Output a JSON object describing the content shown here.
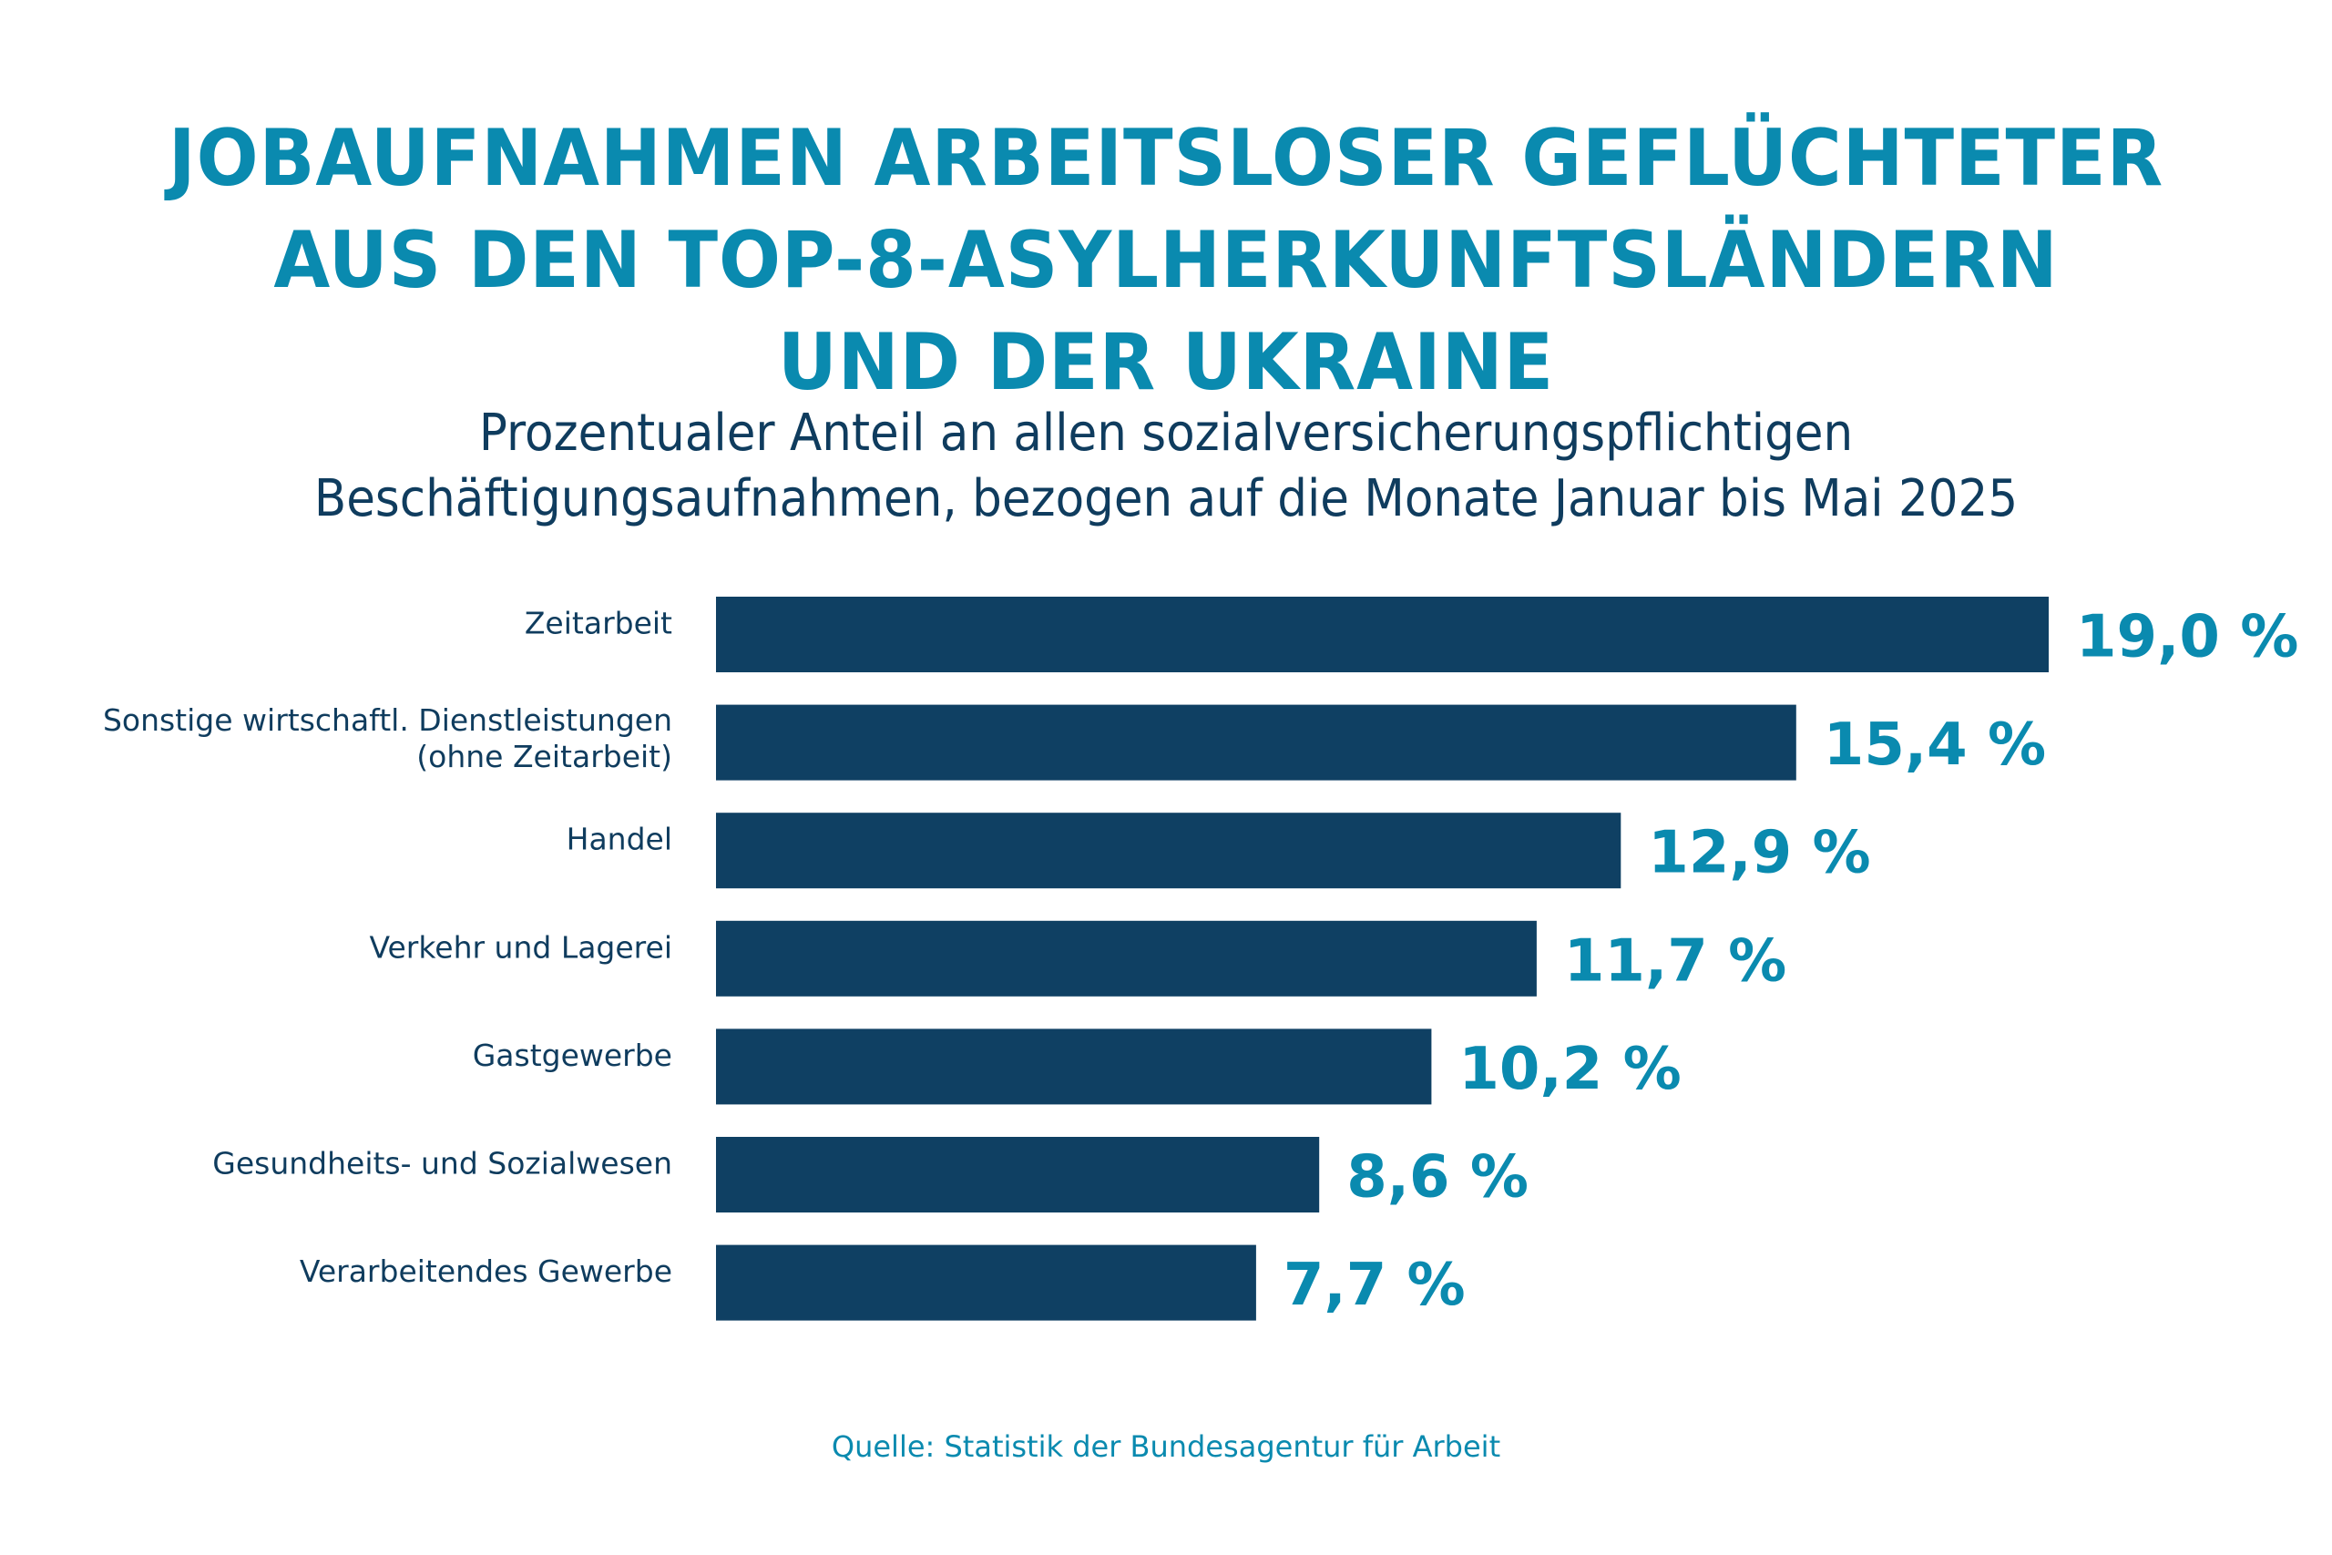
{
  "header": {
    "title_lines": [
      "JOBAUFNAHMEN ARBEITSLOSER GEFLÜCHTETER",
      "AUS DEN TOP-8-ASYLHERKUNFTSLÄNDERN",
      "UND DER UKRAINE"
    ],
    "subtitle_lines": [
      "Prozentualer Anteil an allen sozialversicherungspflichtigen",
      "Beschäftigungsaufnahmen, bezogen auf die Monate Januar bis Mai 2025"
    ]
  },
  "footer": {
    "source": "Quelle: Statistik der Bundesagentur für Arbeit"
  },
  "colors": {
    "accent": "#0a8aaf",
    "bar": "#0f4063",
    "label_text": "#0f3c5e",
    "background": "#ffffff"
  },
  "chart_data": {
    "type": "bar",
    "orientation": "horizontal",
    "title": "JOBAUFNAHMEN ARBEITSLOSER GEFLÜCHTETER AUS DEN TOP-8-ASYLHERKUNFTSLÄNDERN UND DER UKRAINE",
    "subtitle": "Prozentualer Anteil an allen sozialversicherungspflichtigen Beschäftigungsaufnahmen, bezogen auf die Monate Januar bis Mai 2025",
    "xlabel": "",
    "ylabel": "",
    "unit": "%",
    "xlim": [
      0,
      19.0
    ],
    "grid": false,
    "legend": "none",
    "categories": [
      [
        "Zeitarbeit"
      ],
      [
        "Sonstige wirtschaftl. Dienstleistungen",
        "(ohne Zeitarbeit)"
      ],
      [
        "Handel"
      ],
      [
        "Verkehr und Lagerei"
      ],
      [
        "Gastgewerbe"
      ],
      [
        "Gesundheits- und Sozialwesen"
      ],
      [
        "Verarbeitendes Gewerbe"
      ]
    ],
    "values": [
      19.0,
      15.4,
      12.9,
      11.7,
      10.2,
      8.6,
      7.7
    ],
    "value_labels": [
      "19,0 %",
      "15,4 %",
      "12,9 %",
      "11,7 %",
      "10,2 %",
      "8,6 %",
      "7,7 %"
    ],
    "source": "Quelle: Statistik der Bundesagentur für Arbeit"
  }
}
